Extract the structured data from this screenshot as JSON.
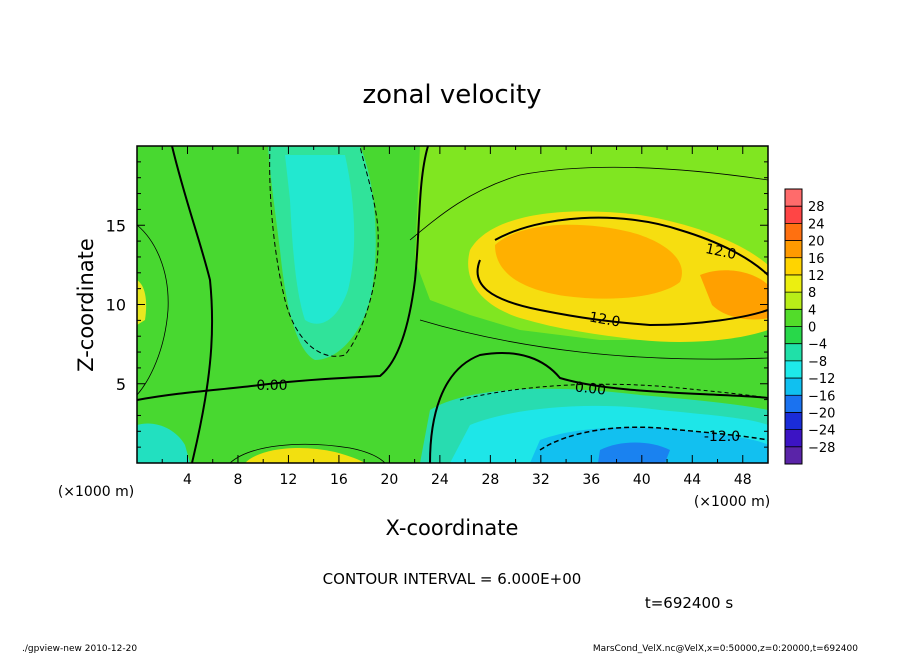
{
  "chart_data": {
    "type": "heatmap",
    "title": "zonal velocity",
    "xlabel": "X-coordinate",
    "ylabel": "Z-coordinate",
    "x_unit": "(×1000 m)",
    "y_unit": "(×1000 m)",
    "xlim": [
      0,
      50
    ],
    "ylim": [
      0,
      20
    ],
    "x_ticks": [
      "4",
      "8",
      "12",
      "16",
      "20",
      "24",
      "28",
      "32",
      "36",
      "40",
      "44",
      "48"
    ],
    "y_ticks": [
      "5",
      "10",
      "15"
    ],
    "colorbar_ticks": [
      "28",
      "24",
      "20",
      "16",
      "12",
      "8",
      "4",
      "0",
      "-4",
      "-8",
      "-12",
      "-16",
      "-20",
      "-24",
      "-28"
    ],
    "colorbar_colors": [
      "#ff6b6b",
      "#ff4545",
      "#ff7010",
      "#ff9a00",
      "#ffd400",
      "#ecef10",
      "#b8ee18",
      "#52dc2a",
      "#28d84a",
      "#20e0a8",
      "#1eeaea",
      "#10c0f0",
      "#1a72f0",
      "#1a2cd8",
      "#3c14c4",
      "#5a24a8"
    ],
    "contour_labels": [
      "12.0",
      "12.0",
      "0.00",
      "0.00",
      "-12.0"
    ],
    "contour_interval_text": "CONTOUR INTERVAL = 6.000E+00",
    "time_text": "t=692400 s"
  },
  "footer": {
    "left": "./gpview-new  2010-12-20",
    "right": "MarsCond_VelX.nc@VelX,x=0:50000,z=0:20000,t=692400"
  }
}
